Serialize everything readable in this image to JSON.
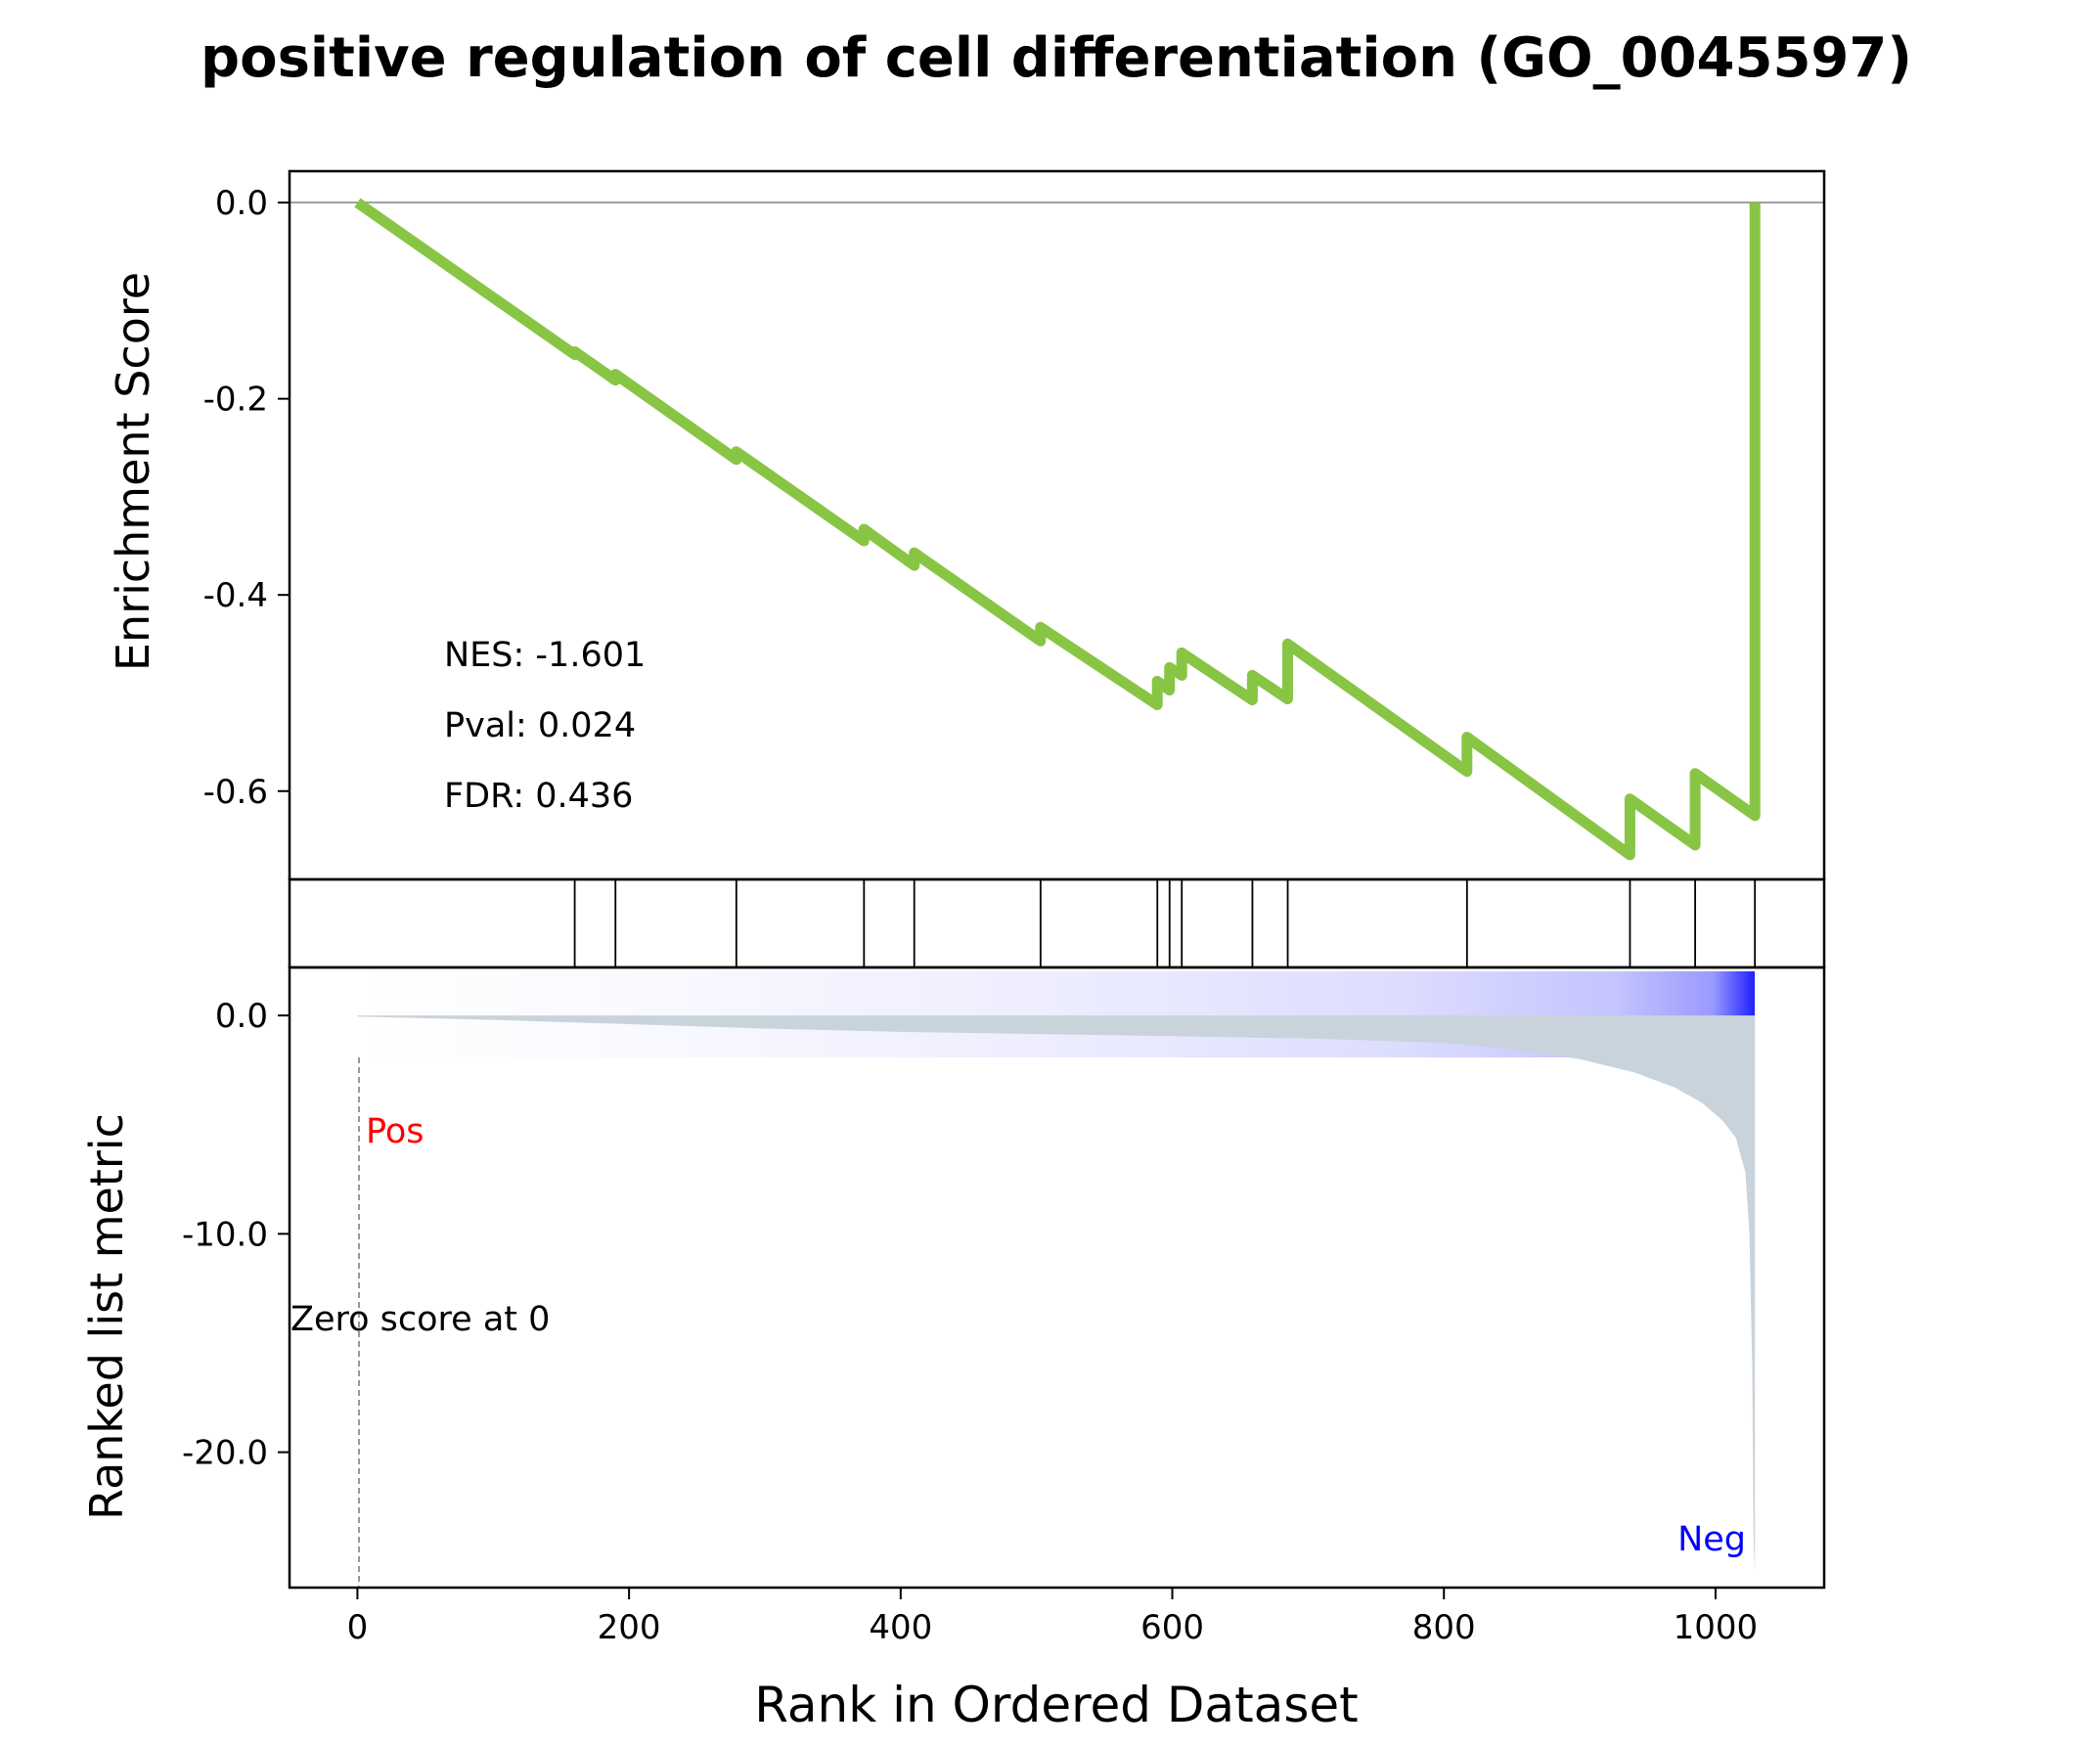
{
  "chart_data": {
    "type": "line",
    "title": "positive regulation of cell differentiation (GO_0045597)",
    "xlabel": "Rank in Ordered Dataset",
    "xlim": [
      -50,
      1080
    ],
    "x_ticks": [
      0,
      200,
      400,
      600,
      800,
      1000
    ],
    "x_tick_labels": [
      "0",
      "200",
      "400",
      "600",
      "800",
      "1000"
    ],
    "n_genes": 1029,
    "line_color": "#88c544",
    "enrichment": {
      "ylabel": "Enrichment Score",
      "ylim": [
        -0.69,
        0.032
      ],
      "y_ticks": [
        0.0,
        -0.2,
        -0.4,
        -0.6
      ],
      "y_tick_labels": [
        "0.0",
        "-0.2",
        "-0.4",
        "-0.6"
      ],
      "x": [
        0,
        160,
        160,
        190,
        190,
        279,
        279,
        373,
        373,
        410,
        410,
        503,
        503,
        589,
        589,
        598,
        598,
        607,
        607,
        659,
        659,
        685,
        685,
        817,
        817,
        937,
        937,
        985,
        985,
        1029,
        1029
      ],
      "y": [
        0.0,
        -0.155,
        -0.152,
        -0.181,
        -0.175,
        -0.262,
        -0.254,
        -0.345,
        -0.333,
        -0.37,
        -0.357,
        -0.447,
        -0.433,
        -0.512,
        -0.488,
        -0.497,
        -0.474,
        -0.482,
        -0.459,
        -0.507,
        -0.482,
        -0.506,
        -0.45,
        -0.58,
        -0.545,
        -0.665,
        -0.608,
        -0.655,
        -0.582,
        -0.625,
        0.0
      ]
    },
    "hit_positions": [
      160,
      190,
      279,
      373,
      410,
      503,
      589,
      598,
      607,
      659,
      685,
      817,
      937,
      985,
      1029
    ],
    "annotations": {
      "nes": "NES: -1.601",
      "pval": "Pval: 0.024",
      "fdr": "FDR: 0.436"
    },
    "ranked_metric": {
      "ylabel": "Ranked list metric",
      "ylim": [
        -26.2,
        2.2
      ],
      "y_ticks": [
        0.0,
        -10.0,
        -20.0
      ],
      "y_tick_labels": [
        "0.0",
        "-10.0",
        "-20.0"
      ],
      "fill_color": "#c9d3dc",
      "x": [
        0,
        100,
        200,
        300,
        400,
        500,
        600,
        700,
        800,
        850,
        900,
        940,
        970,
        990,
        1005,
        1015,
        1022,
        1025,
        1027,
        1028,
        1029
      ],
      "y": [
        -0.05,
        -0.2,
        -0.4,
        -0.6,
        -0.75,
        -0.85,
        -0.95,
        -1.05,
        -1.25,
        -1.55,
        -2.0,
        -2.6,
        -3.3,
        -4.0,
        -4.8,
        -5.6,
        -7.2,
        -10.0,
        -16.0,
        -24.0,
        -25.5
      ]
    },
    "heatmap_bar": {
      "low_color": "#ffffff",
      "high_color": "#0000ff"
    },
    "zero_score_label": "Zero score at 0",
    "pos_label": "Pos",
    "neg_label": "Neg",
    "pos_color": "#ff0000",
    "neg_color": "#0000ff"
  }
}
